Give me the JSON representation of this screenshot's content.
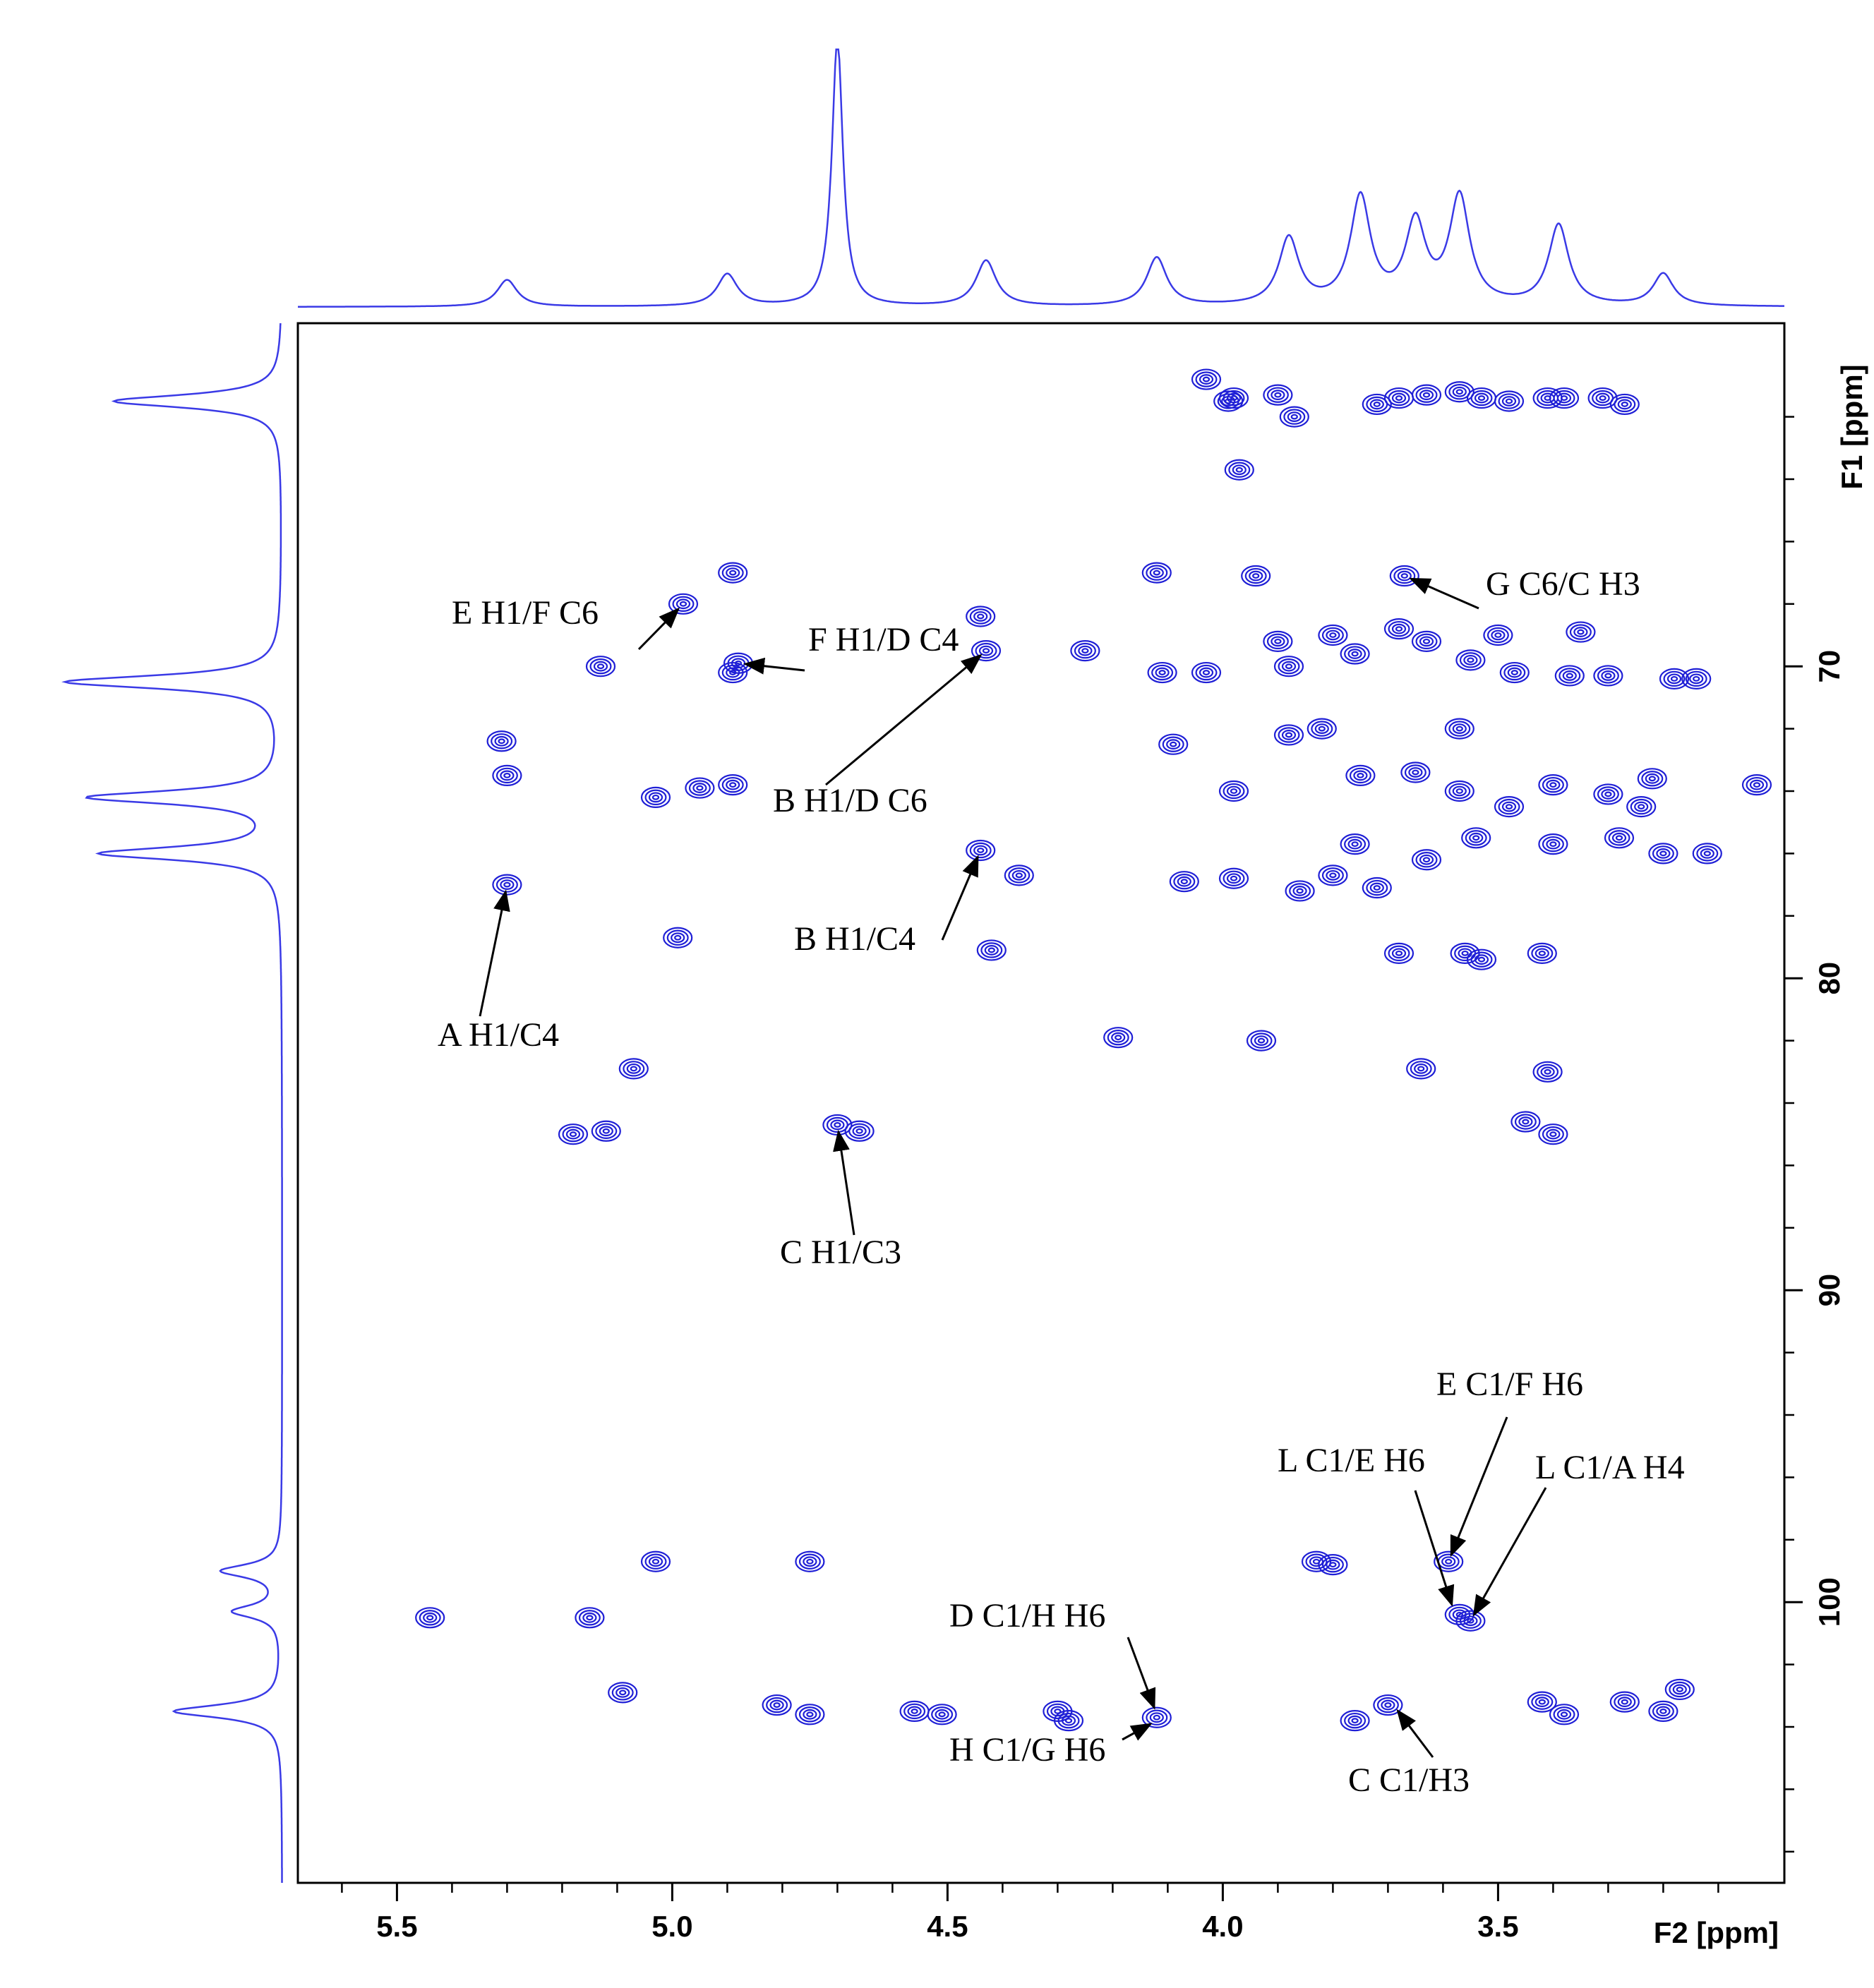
{
  "chart_data": {
    "type": "scatter",
    "subtype": "2D NMR HMBC contour spectrum with 1D projections",
    "xlabel": "F2 [ppm]",
    "ylabel": "F1 [ppm]",
    "xlim": [
      5.68,
      2.98
    ],
    "ylim": [
      59,
      109
    ],
    "x_reversed": true,
    "x_ticks": [
      5.5,
      5.0,
      4.5,
      4.0,
      3.5
    ],
    "x_tick_labels": [
      "5.5",
      "5.0",
      "4.5",
      "4.0",
      "3.5"
    ],
    "y_ticks": [
      70,
      80,
      90,
      100
    ],
    "y_tick_labels": [
      "70",
      "80",
      "90",
      "100"
    ],
    "grid": false,
    "colors": {
      "contour": "#1f1fd6",
      "projection": "#3a3ae6",
      "frame": "#000000",
      "arrow": "#000000"
    },
    "cross_peaks": [
      {
        "x": 4.03,
        "y": 60.8
      },
      {
        "x": 3.99,
        "y": 61.5
      },
      {
        "x": 3.98,
        "y": 61.4
      },
      {
        "x": 3.9,
        "y": 61.3
      },
      {
        "x": 3.87,
        "y": 62.0
      },
      {
        "x": 3.72,
        "y": 61.6
      },
      {
        "x": 3.68,
        "y": 61.4
      },
      {
        "x": 3.63,
        "y": 61.3
      },
      {
        "x": 3.57,
        "y": 61.2
      },
      {
        "x": 3.53,
        "y": 61.4
      },
      {
        "x": 3.48,
        "y": 61.5
      },
      {
        "x": 3.41,
        "y": 61.4
      },
      {
        "x": 3.38,
        "y": 61.4
      },
      {
        "x": 3.31,
        "y": 61.4
      },
      {
        "x": 3.27,
        "y": 61.6
      },
      {
        "x": 3.97,
        "y": 63.7
      },
      {
        "x": 3.94,
        "y": 67.1
      },
      {
        "x": 3.67,
        "y": 67.1
      },
      {
        "x": 4.12,
        "y": 67.0
      },
      {
        "x": 4.89,
        "y": 67.0
      },
      {
        "x": 4.98,
        "y": 68.0
      },
      {
        "x": 4.88,
        "y": 69.9
      },
      {
        "x": 4.89,
        "y": 70.2
      },
      {
        "x": 5.13,
        "y": 70.0
      },
      {
        "x": 4.44,
        "y": 68.4
      },
      {
        "x": 4.43,
        "y": 69.5
      },
      {
        "x": 4.25,
        "y": 69.5
      },
      {
        "x": 4.11,
        "y": 70.2
      },
      {
        "x": 4.03,
        "y": 70.2
      },
      {
        "x": 3.9,
        "y": 69.2
      },
      {
        "x": 3.88,
        "y": 70.0
      },
      {
        "x": 3.8,
        "y": 69.0
      },
      {
        "x": 3.76,
        "y": 69.6
      },
      {
        "x": 3.68,
        "y": 68.8
      },
      {
        "x": 3.63,
        "y": 69.2
      },
      {
        "x": 3.55,
        "y": 69.8
      },
      {
        "x": 3.5,
        "y": 69.0
      },
      {
        "x": 3.47,
        "y": 70.2
      },
      {
        "x": 3.35,
        "y": 68.9
      },
      {
        "x": 3.37,
        "y": 70.3
      },
      {
        "x": 3.3,
        "y": 70.3
      },
      {
        "x": 3.18,
        "y": 70.4
      },
      {
        "x": 3.14,
        "y": 70.4
      },
      {
        "x": 3.88,
        "y": 72.2
      },
      {
        "x": 3.82,
        "y": 72.0
      },
      {
        "x": 3.57,
        "y": 72.0
      },
      {
        "x": 4.09,
        "y": 72.5
      },
      {
        "x": 5.31,
        "y": 72.4
      },
      {
        "x": 5.3,
        "y": 73.5
      },
      {
        "x": 4.95,
        "y": 73.9
      },
      {
        "x": 4.89,
        "y": 73.8
      },
      {
        "x": 5.03,
        "y": 74.2
      },
      {
        "x": 3.98,
        "y": 74.0
      },
      {
        "x": 3.75,
        "y": 73.5
      },
      {
        "x": 3.65,
        "y": 73.4
      },
      {
        "x": 3.57,
        "y": 74.0
      },
      {
        "x": 3.48,
        "y": 74.5
      },
      {
        "x": 3.4,
        "y": 73.8
      },
      {
        "x": 3.3,
        "y": 74.1
      },
      {
        "x": 3.24,
        "y": 74.5
      },
      {
        "x": 3.22,
        "y": 73.6
      },
      {
        "x": 3.03,
        "y": 73.8
      },
      {
        "x": 3.54,
        "y": 75.5
      },
      {
        "x": 3.4,
        "y": 75.7
      },
      {
        "x": 3.28,
        "y": 75.5
      },
      {
        "x": 3.2,
        "y": 76.0
      },
      {
        "x": 3.12,
        "y": 76.0
      },
      {
        "x": 4.44,
        "y": 75.9
      },
      {
        "x": 4.37,
        "y": 76.7
      },
      {
        "x": 3.98,
        "y": 76.8
      },
      {
        "x": 3.86,
        "y": 77.2
      },
      {
        "x": 3.8,
        "y": 76.7
      },
      {
        "x": 3.76,
        "y": 75.7
      },
      {
        "x": 3.72,
        "y": 77.1
      },
      {
        "x": 3.63,
        "y": 76.2
      },
      {
        "x": 4.07,
        "y": 76.9
      },
      {
        "x": 5.3,
        "y": 77.0
      },
      {
        "x": 4.99,
        "y": 78.7
      },
      {
        "x": 4.42,
        "y": 79.1
      },
      {
        "x": 3.68,
        "y": 79.2
      },
      {
        "x": 3.56,
        "y": 79.2
      },
      {
        "x": 3.53,
        "y": 79.4
      },
      {
        "x": 3.42,
        "y": 79.2
      },
      {
        "x": 4.19,
        "y": 81.9
      },
      {
        "x": 3.93,
        "y": 82.0
      },
      {
        "x": 5.07,
        "y": 82.9
      },
      {
        "x": 3.64,
        "y": 82.9
      },
      {
        "x": 3.41,
        "y": 83.0
      },
      {
        "x": 5.18,
        "y": 85.0
      },
      {
        "x": 5.12,
        "y": 84.9
      },
      {
        "x": 4.7,
        "y": 84.7
      },
      {
        "x": 4.66,
        "y": 84.9
      },
      {
        "x": 3.45,
        "y": 84.6
      },
      {
        "x": 3.4,
        "y": 85.0
      },
      {
        "x": 5.03,
        "y": 98.7
      },
      {
        "x": 4.75,
        "y": 98.7
      },
      {
        "x": 3.83,
        "y": 98.7
      },
      {
        "x": 3.8,
        "y": 98.8
      },
      {
        "x": 3.59,
        "y": 98.7
      },
      {
        "x": 5.44,
        "y": 100.5
      },
      {
        "x": 5.15,
        "y": 100.5
      },
      {
        "x": 3.57,
        "y": 100.4
      },
      {
        "x": 3.55,
        "y": 100.6
      },
      {
        "x": 5.09,
        "y": 102.9
      },
      {
        "x": 4.81,
        "y": 103.3
      },
      {
        "x": 4.75,
        "y": 103.6
      },
      {
        "x": 4.56,
        "y": 103.5
      },
      {
        "x": 4.51,
        "y": 103.6
      },
      {
        "x": 4.3,
        "y": 103.5
      },
      {
        "x": 4.28,
        "y": 103.8
      },
      {
        "x": 4.12,
        "y": 103.7
      },
      {
        "x": 3.76,
        "y": 103.8
      },
      {
        "x": 3.7,
        "y": 103.3
      },
      {
        "x": 3.42,
        "y": 103.2
      },
      {
        "x": 3.38,
        "y": 103.6
      },
      {
        "x": 3.27,
        "y": 103.2
      },
      {
        "x": 3.2,
        "y": 103.5
      },
      {
        "x": 3.17,
        "y": 102.8
      }
    ],
    "annotations": [
      {
        "text": "E H1/F C6",
        "peak": [
          4.98,
          68.0
        ]
      },
      {
        "text": "F H1/D C4",
        "peak": [
          4.88,
          69.9
        ]
      },
      {
        "text": "B H1/D C6",
        "peak": [
          4.43,
          69.5
        ]
      },
      {
        "text": "G C6/C H3",
        "peak": [
          3.67,
          67.1
        ]
      },
      {
        "text": "B H1/C4",
        "peak": [
          4.44,
          75.9
        ]
      },
      {
        "text": "A H1/C4",
        "peak": [
          5.3,
          77.0
        ]
      },
      {
        "text": "C H1/C3",
        "peak": [
          4.7,
          84.7
        ]
      },
      {
        "text": "E C1/F H6",
        "peak": [
          3.59,
          98.7
        ]
      },
      {
        "text": "L C1/E H6",
        "peak": [
          3.58,
          100.3
        ]
      },
      {
        "text": "L C1/A H4",
        "peak": [
          3.55,
          100.6
        ]
      },
      {
        "text": "D C1/H H6",
        "peak": [
          4.12,
          103.6
        ]
      },
      {
        "text": "H C1/G H6",
        "peak": [
          4.12,
          103.8
        ]
      },
      {
        "text": "C C1/H3",
        "peak": [
          3.69,
          103.3
        ]
      }
    ],
    "f2_projection_peaks": [
      {
        "x": 5.3,
        "h": 0.1
      },
      {
        "x": 4.9,
        "h": 0.12
      },
      {
        "x": 4.7,
        "h": 1.0
      },
      {
        "x": 4.43,
        "h": 0.17
      },
      {
        "x": 4.12,
        "h": 0.18
      },
      {
        "x": 3.88,
        "h": 0.25
      },
      {
        "x": 3.75,
        "h": 0.4
      },
      {
        "x": 3.65,
        "h": 0.3
      },
      {
        "x": 3.57,
        "h": 0.4
      },
      {
        "x": 3.39,
        "h": 0.3
      },
      {
        "x": 3.2,
        "h": 0.12
      }
    ],
    "f1_projection_peaks": [
      {
        "y": 61.5,
        "h": 0.7
      },
      {
        "y": 70.5,
        "h": 0.9
      },
      {
        "y": 74.2,
        "h": 0.8
      },
      {
        "y": 76.0,
        "h": 0.75
      },
      {
        "y": 99.0,
        "h": 0.25
      },
      {
        "y": 100.3,
        "h": 0.2
      },
      {
        "y": 103.5,
        "h": 0.45
      }
    ]
  }
}
